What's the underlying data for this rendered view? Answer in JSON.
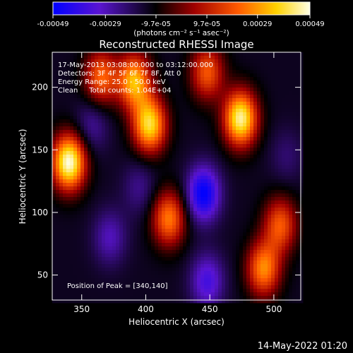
{
  "chart_data": {
    "type": "heatmap",
    "title": "Reconstructed RHESSI Image",
    "xlabel": "Heliocentric X (arcsec)",
    "ylabel": "Heliocentric Y (arcsec)",
    "xlim": [
      327,
      521
    ],
    "ylim": [
      30,
      228
    ],
    "xticks": [
      350,
      400,
      450,
      500
    ],
    "yticks": [
      50,
      100,
      150,
      200
    ],
    "colorbar": {
      "label": "(photons cm⁻² s⁻¹ asec⁻²)",
      "range": [
        -0.00049,
        0.00049
      ],
      "ticks": [
        "-0.00049",
        "-0.00029",
        "-9.7e-05",
        "9.7e-05",
        "0.00029",
        "0.00049"
      ],
      "tick_values": [
        -0.00049,
        -0.00029,
        -9.7e-05,
        9.7e-05,
        0.00029,
        0.00049
      ],
      "colormap_stops": [
        "#0000ff",
        "#5a14d2",
        "#000000",
        "#a00000",
        "#ff5a00",
        "#ffd200",
        "#ffffe6"
      ]
    },
    "info_lines": [
      "17-May-2013 03:08:00.000 to 03:12:00.000",
      "Detectors: 3F 4F 5F 6F 7F 8F, Att 0",
      "Energy Range: 25.0 - 50.0 keV",
      "Clean     Total counts: 1.04E+04"
    ],
    "peak_text": "Position of Peak = [340,140]",
    "peak": [
      340,
      140
    ],
    "sources": [
      {
        "x": 340,
        "y": 140,
        "value": 0.00049
      },
      {
        "x": 474,
        "y": 175,
        "value": 0.00045
      },
      {
        "x": 403,
        "y": 170,
        "value": 0.00039
      },
      {
        "x": 391,
        "y": 205,
        "value": 0.00033
      },
      {
        "x": 418,
        "y": 95,
        "value": 0.00025
      },
      {
        "x": 492,
        "y": 55,
        "value": 0.00027
      },
      {
        "x": 365,
        "y": 208,
        "value": 0.00022
      },
      {
        "x": 505,
        "y": 90,
        "value": 0.0002
      },
      {
        "x": 448,
        "y": 212,
        "value": 0.0002
      },
      {
        "x": 445,
        "y": 115,
        "value": -0.00049
      },
      {
        "x": 448,
        "y": 45,
        "value": -0.00036
      },
      {
        "x": 372,
        "y": 80,
        "value": -0.00029
      },
      {
        "x": 358,
        "y": 170,
        "value": -0.00026
      },
      {
        "x": 395,
        "y": 120,
        "value": -0.00024
      },
      {
        "x": 510,
        "y": 145,
        "value": -0.00021
      }
    ]
  },
  "footer": {
    "date": "14-May-2022 01:20"
  }
}
